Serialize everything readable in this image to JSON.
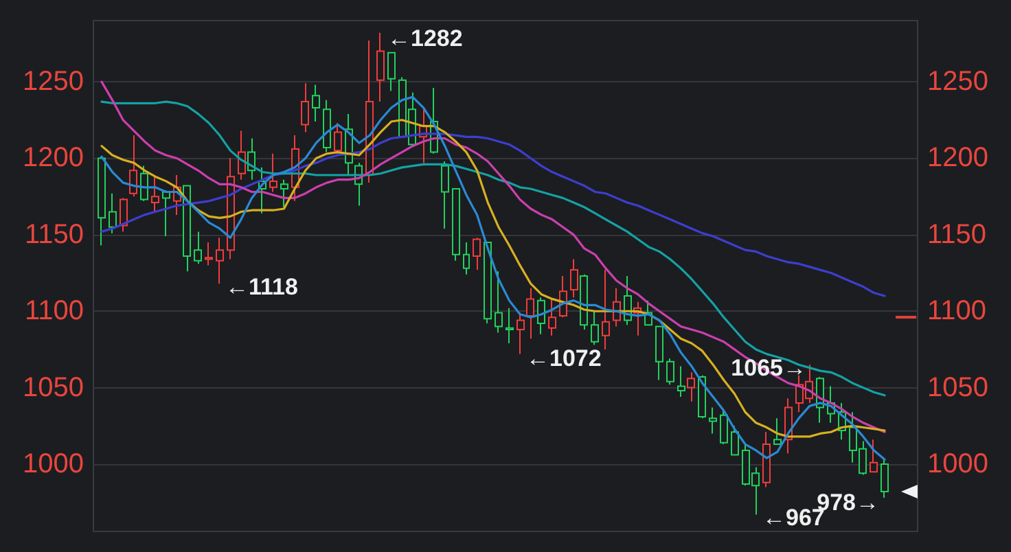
{
  "chart_data": {
    "type": "candlestick",
    "categories": [
      null,
      null,
      null,
      null,
      null,
      null,
      null,
      null,
      null,
      null,
      null,
      null,
      null,
      null,
      null,
      null,
      null,
      null,
      null,
      null,
      null,
      null,
      null,
      null,
      null,
      null,
      null,
      null,
      null,
      null,
      null,
      null,
      null,
      null,
      null,
      null,
      null,
      null,
      null,
      null,
      null,
      null,
      null,
      null,
      null,
      null,
      null,
      null,
      null,
      null,
      null,
      null,
      null,
      null,
      null,
      null,
      null,
      null,
      null,
      null,
      null,
      null,
      null,
      null,
      null,
      null,
      null,
      null,
      null,
      null,
      null,
      null,
      null,
      null,
      null,
      null,
      null
    ],
    "ohlc": [
      [
        1200,
        1201,
        1143,
        1161
      ],
      [
        1165,
        1177,
        1151,
        1155
      ],
      [
        1156,
        1174,
        1152,
        1173
      ],
      [
        1177,
        1215,
        1175,
        1192
      ],
      [
        1190,
        1195,
        1172,
        1173
      ],
      [
        1171,
        1189,
        1165,
        1175
      ],
      [
        1178,
        1179,
        1149,
        1174
      ],
      [
        1172,
        1189,
        1163,
        1181
      ],
      [
        1182,
        1182,
        1126,
        1136
      ],
      [
        1140,
        1152,
        1131,
        1133
      ],
      [
        1134,
        1145,
        1130,
        1135
      ],
      [
        1133,
        1148,
        1118,
        1140
      ],
      [
        1140,
        1200,
        1134,
        1188
      ],
      [
        1190,
        1218,
        1186,
        1204
      ],
      [
        1204,
        1213,
        1186,
        1192
      ],
      [
        1185,
        1194,
        1164,
        1180
      ],
      [
        1181,
        1203,
        1178,
        1185
      ],
      [
        1183,
        1186,
        1168,
        1180
      ],
      [
        1181,
        1215,
        1172,
        1206
      ],
      [
        1222,
        1249,
        1217,
        1237
      ],
      [
        1241,
        1248,
        1224,
        1233
      ],
      [
        1232,
        1238,
        1204,
        1207
      ],
      [
        1205,
        1223,
        1203,
        1217
      ],
      [
        1219,
        1229,
        1189,
        1197
      ],
      [
        1195,
        1197,
        1169,
        1183
      ],
      [
        1189,
        1277,
        1184,
        1237
      ],
      [
        1251,
        1282,
        1237,
        1270
      ],
      [
        1269,
        1269,
        1244,
        1252
      ],
      [
        1251,
        1253,
        1214,
        1214
      ],
      [
        1232,
        1243,
        1208,
        1209
      ],
      [
        1214,
        1233,
        1197,
        1221
      ],
      [
        1224,
        1246,
        1203,
        1204
      ],
      [
        1195,
        1198,
        1154,
        1178
      ],
      [
        1180,
        1180,
        1133,
        1137
      ],
      [
        1137,
        1145,
        1124,
        1128
      ],
      [
        1136,
        1148,
        1127,
        1147
      ],
      [
        1145,
        1145,
        1092,
        1095
      ],
      [
        1099,
        1126,
        1086,
        1090
      ],
      [
        1089,
        1102,
        1079,
        1088
      ],
      [
        1088,
        1099,
        1072,
        1094
      ],
      [
        1097,
        1115,
        1082,
        1108
      ],
      [
        1107,
        1109,
        1085,
        1092
      ],
      [
        1089,
        1108,
        1084,
        1096
      ],
      [
        1097,
        1123,
        1096,
        1113
      ],
      [
        1114,
        1134,
        1109,
        1127
      ],
      [
        1123,
        1124,
        1088,
        1091
      ],
      [
        1091,
        1100,
        1078,
        1080
      ],
      [
        1084,
        1127,
        1075,
        1093
      ],
      [
        1094,
        1115,
        1090,
        1106
      ],
      [
        1110,
        1123,
        1091,
        1094
      ],
      [
        1099,
        1106,
        1084,
        1102
      ],
      [
        1099,
        1107,
        1091,
        1091
      ],
      [
        1090,
        1090,
        1055,
        1067
      ],
      [
        1067,
        1069,
        1052,
        1054
      ],
      [
        1051,
        1064,
        1044,
        1048
      ],
      [
        1050,
        1060,
        1041,
        1056
      ],
      [
        1057,
        1058,
        1030,
        1031
      ],
      [
        1030,
        1037,
        1020,
        1028
      ],
      [
        1032,
        1035,
        1013,
        1014
      ],
      [
        1021,
        1025,
        1006,
        1006
      ],
      [
        1009,
        1013,
        986,
        987
      ],
      [
        994,
        998,
        967,
        986
      ],
      [
        988,
        1021,
        985,
        1013
      ],
      [
        1016,
        1030,
        1013,
        1013
      ],
      [
        1016,
        1043,
        1007,
        1037
      ],
      [
        1040,
        1058,
        1034,
        1052
      ],
      [
        1043,
        1065,
        1040,
        1054
      ],
      [
        1056,
        1057,
        1027,
        1037
      ],
      [
        1040,
        1051,
        1027,
        1033
      ],
      [
        1034,
        1040,
        1016,
        1022
      ],
      [
        1024,
        1034,
        1001,
        1009
      ],
      [
        1010,
        1015,
        993,
        994
      ],
      [
        995,
        1016,
        995,
        1001
      ],
      [
        1000,
        1004,
        978,
        982
      ],
      null,
      null,
      null
    ],
    "colors": [
      "#20d25c",
      "#20d25c",
      "#f03c3c",
      "#f03c3c",
      "#20d25c",
      "#f03c3c",
      "#20d25c",
      "#f03c3c",
      "#20d25c",
      "#20d25c",
      "#f03c3c",
      "#f03c3c",
      "#f03c3c",
      "#f03c3c",
      "#20d25c",
      "#20d25c",
      "#f03c3c",
      "#20d25c",
      "#f03c3c",
      "#f03c3c",
      "#20d25c",
      "#20d25c",
      "#f03c3c",
      "#20d25c",
      "#20d25c",
      "#f03c3c",
      "#f03c3c",
      "#20d25c",
      "#20d25c",
      "#20d25c",
      "#f03c3c",
      "#20d25c",
      "#20d25c",
      "#20d25c",
      "#20d25c",
      "#f03c3c",
      "#20d25c",
      "#20d25c",
      "#20d25c",
      "#f03c3c",
      "#f03c3c",
      "#20d25c",
      "#f03c3c",
      "#f03c3c",
      "#f03c3c",
      "#20d25c",
      "#20d25c",
      "#f03c3c",
      "#f03c3c",
      "#20d25c",
      "#f03c3c",
      "#20d25c",
      "#20d25c",
      "#20d25c",
      "#20d25c",
      "#f03c3c",
      "#20d25c",
      "#20d25c",
      "#20d25c",
      "#20d25c",
      "#20d25c",
      "#20d25c",
      "#f03c3c",
      "#20d25c",
      "#f03c3c",
      "#f03c3c",
      "#f03c3c",
      "#20d25c",
      "#20d25c",
      "#20d25c",
      "#20d25c",
      "#20d25c",
      "#f03c3c",
      "#20d25c",
      null,
      null,
      null
    ],
    "series": [
      {
        "type": "line",
        "color": "#3e3ed0",
        "values": [
          1152,
          1154,
          1157,
          1160,
          1163,
          1165,
          1167,
          1169,
          1170,
          1171,
          1172,
          1174,
          1176,
          1180,
          1183,
          1186,
          1189,
          1190,
          1192,
          1195,
          1197,
          1200,
          1202,
          1203,
          1204,
          1206,
          1210,
          1213,
          1214,
          1215,
          1216,
          1216,
          1216,
          1215,
          1214,
          1214,
          1213,
          1211,
          1209,
          1205,
          1200,
          1195,
          1191,
          1188,
          1185,
          1182,
          1178,
          1177,
          1174,
          1171,
          1169,
          1166,
          1163,
          1160,
          1157,
          1154,
          1151,
          1149,
          1146,
          1143,
          1140,
          1139,
          1136,
          1134,
          1132,
          1131,
          1129,
          1127,
          1125,
          1122,
          1119,
          1116,
          1112,
          1110,
          null,
          null,
          null
        ]
      },
      {
        "type": "line",
        "color": "#14a2a4",
        "values": [
          1237,
          1236,
          1236,
          1236,
          1236,
          1236,
          1237,
          1236,
          1234,
          1229,
          1223,
          1215,
          1205,
          1199,
          1195,
          1191,
          1190,
          1190,
          1190,
          1190,
          1189,
          1189,
          1189,
          1189,
          1189,
          1189,
          1190,
          1192,
          1194,
          1195,
          1196,
          1196,
          1196,
          1195,
          1193,
          1191,
          1189,
          1186,
          1184,
          1181,
          1180,
          1178,
          1176,
          1174,
          1171,
          1168,
          1164,
          1160,
          1156,
          1152,
          1147,
          1142,
          1139,
          1134,
          1128,
          1121,
          1113,
          1105,
          1096,
          1088,
          1080,
          1075,
          1072,
          1070,
          1068,
          1065,
          1063,
          1061,
          1060,
          1057,
          1053,
          1050,
          1047,
          1045,
          null,
          null,
          null
        ]
      },
      {
        "type": "line",
        "color": "#cc3fae",
        "values": [
          1250,
          1238,
          1225,
          1218,
          1211,
          1205,
          1202,
          1200,
          1196,
          1192,
          1187,
          1183,
          1183,
          1181,
          1178,
          1178,
          1176,
          1174,
          1174,
          1177,
          1181,
          1184,
          1186,
          1186,
          1187,
          1191,
          1196,
          1200,
          1204,
          1208,
          1211,
          1213,
          1213,
          1209,
          1207,
          1203,
          1198,
          1190,
          1182,
          1173,
          1167,
          1163,
          1160,
          1155,
          1150,
          1141,
          1137,
          1128,
          1120,
          1115,
          1111,
          1105,
          1100,
          1095,
          1090,
          1088,
          1086,
          1083,
          1080,
          1075,
          1070,
          1066,
          1061,
          1057,
          1053,
          1051,
          1048,
          1043,
          1040,
          1036,
          1031,
          1027,
          1024,
          1021,
          null,
          null,
          null
        ]
      },
      {
        "type": "line",
        "color": "#d8b020",
        "values": [
          1208,
          1202,
          1199,
          1197,
          1192,
          1188,
          1185,
          1181,
          1172,
          1166,
          1162,
          1161,
          1162,
          1165,
          1166,
          1166,
          1166,
          1167,
          1180,
          1192,
          1200,
          1203,
          1204,
          1203,
          1202,
          1209,
          1217,
          1224,
          1225,
          1223,
          1221,
          1221,
          1217,
          1211,
          1204,
          1192,
          1171,
          1155,
          1143,
          1130,
          1118,
          1111,
          1108,
          1106,
          1104,
          1101,
          1100,
          1100,
          1100,
          1100,
          1100,
          1098,
          1094,
          1088,
          1082,
          1079,
          1074,
          1065,
          1055,
          1046,
          1034,
          1027,
          1024,
          1020,
          1018,
          1018,
          1018,
          1020,
          1021,
          1024,
          1025,
          1024,
          1023,
          1022,
          null,
          null,
          null
        ]
      },
      {
        "type": "line",
        "color": "#2a8ad4",
        "values": [
          1201,
          1191,
          1184,
          1182,
          1181,
          1181,
          1178,
          1178,
          1172,
          1165,
          1158,
          1154,
          1148,
          1160,
          1174,
          1183,
          1189,
          1191,
          1194,
          1200,
          1210,
          1217,
          1222,
          1217,
          1210,
          1215,
          1225,
          1233,
          1238,
          1240,
          1233,
          1222,
          1208,
          1192,
          1176,
          1163,
          1141,
          1121,
          1107,
          1098,
          1096,
          1098,
          1101,
          1105,
          1107,
          1104,
          1104,
          1101,
          1100,
          1098,
          1097,
          1098,
          1094,
          1085,
          1073,
          1064,
          1053,
          1044,
          1035,
          1023,
          1013,
          1009,
          1004,
          1008,
          1020,
          1030,
          1038,
          1040,
          1038,
          1032,
          1026,
          1018,
          1009,
          1003,
          null,
          null,
          null
        ]
      }
    ],
    "ylim": [
      956,
      1290
    ],
    "yticks": [
      1000,
      1050,
      1100,
      1150,
      1200,
      1250
    ],
    "y2lim": [
      956,
      1290
    ],
    "y2ticks": [
      1000,
      1050,
      1100,
      1150,
      1200,
      1250
    ],
    "grid": "y",
    "tick_labels": "y",
    "marker": "none",
    "annotations": [
      "←1282",
      "←1118",
      "←1072",
      "1065→",
      "←967",
      "978→"
    ]
  }
}
